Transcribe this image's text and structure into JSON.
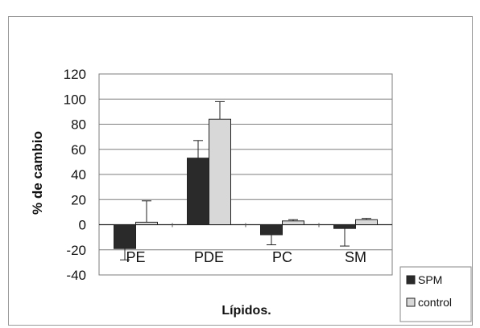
{
  "chart_data": {
    "type": "bar",
    "categories": [
      "PE",
      "PDE",
      "PC",
      "SM"
    ],
    "series": [
      {
        "name": "SPM",
        "values": [
          -19,
          53,
          -8,
          -3
        ],
        "errors": [
          9,
          14,
          8,
          14
        ],
        "color": "#2a2a2a"
      },
      {
        "name": "control",
        "values": [
          2,
          84,
          3,
          4
        ],
        "errors": [
          17,
          14,
          1,
          1
        ],
        "color": "#d8d8d8"
      }
    ],
    "ylabel": "% de cambio",
    "xlabel": "Lípidos.",
    "ylim": [
      -40,
      120
    ],
    "yticks": [
      120,
      100,
      80,
      60,
      40,
      20,
      0,
      -20,
      -40
    ],
    "grid": true,
    "legend_position": "bottom-right"
  }
}
